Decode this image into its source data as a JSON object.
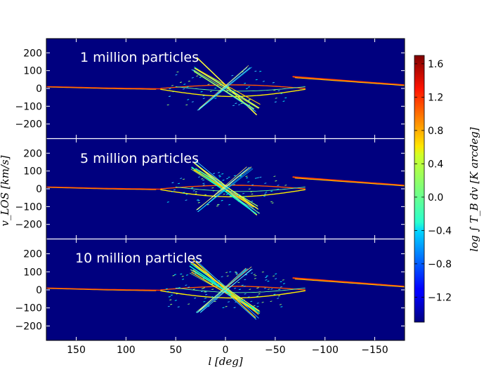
{
  "chart_data": {
    "type": "heatmap",
    "description_panels": "Three stacked longitude-velocity diagrams sharing the x axis",
    "xlabel": "l [deg]",
    "ylabel": "v_LOS [km/s]",
    "xlim": [
      180,
      -180
    ],
    "x_ticks": [
      "150",
      "100",
      "50",
      "0",
      "−50",
      "−100",
      "−150"
    ],
    "x_tick_values": [
      150,
      100,
      50,
      0,
      -50,
      -100,
      -150
    ],
    "ylim": [
      -280,
      280
    ],
    "y_ticks": [
      "200",
      "100",
      "0",
      "−100",
      "−200"
    ],
    "y_tick_values": [
      200,
      100,
      0,
      -100,
      -200
    ],
    "panels": [
      {
        "label": "1 million particles",
        "density": 1
      },
      {
        "label": "5 million particles",
        "density": 2
      },
      {
        "label": "10 million particles",
        "density": 3
      }
    ],
    "colorbar": {
      "label": "log ∫ T_B dv [K arcdeg]",
      "range": [
        -1.5,
        1.7
      ],
      "ticks": [
        "1.6",
        "1.2",
        "0.8",
        "0.4",
        "0.0",
        "−0.4",
        "−0.8",
        "−1.2"
      ],
      "tick_values": [
        1.6,
        1.2,
        0.8,
        0.4,
        0.0,
        -0.4,
        -0.8,
        -1.2
      ],
      "colormap": "jet"
    },
    "background_color": "#00007f"
  }
}
